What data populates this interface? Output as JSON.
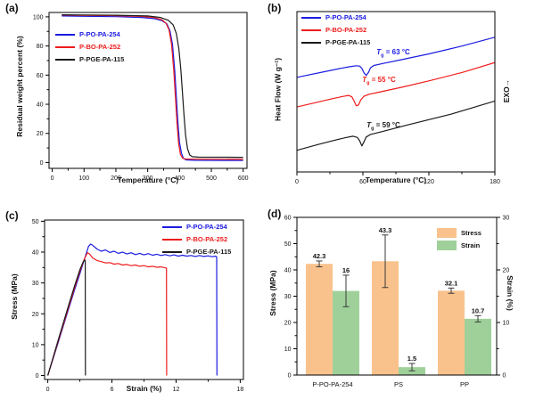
{
  "figure_bg": "#ffffff",
  "colors": {
    "blue": "#1b1be0",
    "red": "#ee1c1c",
    "black": "#1a1a1a",
    "orange_bar": "#f9c28d",
    "green_bar": "#9fd09a",
    "error_bar": "#3a3a3a"
  },
  "chart_data": [
    {
      "id": "a",
      "type": "line",
      "panel_label": "(a)",
      "xlabel": "Temperature (°C)",
      "ylabel": "Residual weight percent (%)",
      "xlim": [
        -10,
        612
      ],
      "ylim": [
        -4,
        103
      ],
      "xticks": {
        "major": [
          0,
          100,
          200,
          300,
          400,
          500,
          600
        ],
        "minor": [
          50,
          150,
          250,
          350,
          450,
          550
        ]
      },
      "yticks": {
        "major": [
          0,
          20,
          40,
          60,
          80,
          100
        ],
        "minor": [
          10,
          30,
          50,
          70,
          90
        ]
      },
      "legend_position": "top-left",
      "series": [
        {
          "name": "P-PO-PA-254",
          "color": "#1b1be0",
          "points": [
            [
              30,
              100.6
            ],
            [
              100,
              100.4
            ],
            [
              200,
              100.1
            ],
            [
              280,
              99.6
            ],
            [
              320,
              98.8
            ],
            [
              345,
              97.4
            ],
            [
              360,
              95.2
            ],
            [
              370,
              90.5
            ],
            [
              378,
              81
            ],
            [
              385,
              63
            ],
            [
              390,
              45
            ],
            [
              395,
              28
            ],
            [
              400,
              14
            ],
            [
              406,
              6.5
            ],
            [
              412,
              3
            ],
            [
              420,
              1.8
            ],
            [
              450,
              1.5
            ],
            [
              600,
              1.4
            ]
          ]
        },
        {
          "name": "P-BO-PA-252",
          "color": "#ee1c1c",
          "points": [
            [
              30,
              101.2
            ],
            [
              100,
              101.0
            ],
            [
              200,
              100.8
            ],
            [
              280,
              100.3
            ],
            [
              320,
              99.5
            ],
            [
              345,
              98.0
            ],
            [
              357,
              95.8
            ],
            [
              367,
              91
            ],
            [
              375,
              81
            ],
            [
              382,
              63
            ],
            [
              387,
              45
            ],
            [
              392,
              27
            ],
            [
              397,
              13
            ],
            [
              403,
              5.5
            ],
            [
              410,
              2.9
            ],
            [
              420,
              2.4
            ],
            [
              600,
              2.2
            ]
          ]
        },
        {
          "name": "P-PGE-PA-115",
          "color": "#1a1a1a",
          "points": [
            [
              30,
              101.4
            ],
            [
              100,
              101.3
            ],
            [
              200,
              101.1
            ],
            [
              300,
              100.6
            ],
            [
              340,
              99.6
            ],
            [
              365,
              97.6
            ],
            [
              380,
              94.5
            ],
            [
              390,
              88.5
            ],
            [
              398,
              78
            ],
            [
              404,
              64
            ],
            [
              409,
              49
            ],
            [
              414,
              33
            ],
            [
              419,
              19
            ],
            [
              425,
              9.5
            ],
            [
              432,
              5.2
            ],
            [
              440,
              4.0
            ],
            [
              460,
              3.7
            ],
            [
              600,
              3.6
            ]
          ]
        }
      ]
    },
    {
      "id": "b",
      "type": "line",
      "panel_label": "(b)",
      "xlabel": "Temperature (°C)",
      "ylabel": "Heat Flow (W g⁻¹)",
      "exo_label": "EXO→",
      "xlim": [
        0,
        180
      ],
      "ylim": [
        0,
        10
      ],
      "xticks": {
        "major": [
          0,
          60,
          120,
          180
        ],
        "minor": [
          30,
          90,
          150
        ]
      },
      "yticks": null,
      "legend_position": "top-left",
      "annotations": [
        {
          "prefix": "T",
          "sub": "g",
          "text": " = 63 °C",
          "color": "#1b1be0"
        },
        {
          "prefix": "T",
          "sub": "g",
          "text": " = 55 °C",
          "color": "#ee1c1c"
        },
        {
          "prefix": "T",
          "sub": "g",
          "text": " = 59 °C",
          "color": "#1a1a1a"
        }
      ],
      "series": [
        {
          "name": "P-PO-PA-254",
          "color": "#1b1be0",
          "points": [
            [
              0,
              5.9
            ],
            [
              25,
              6.25
            ],
            [
              40,
              6.46
            ],
            [
              48,
              6.56
            ],
            [
              54,
              6.62
            ],
            [
              57,
              6.6
            ],
            [
              59,
              6.46
            ],
            [
              61,
              6.18
            ],
            [
              63,
              6.02
            ],
            [
              65,
              6.2
            ],
            [
              67,
              6.5
            ],
            [
              70,
              6.64
            ],
            [
              78,
              6.76
            ],
            [
              95,
              7.0
            ],
            [
              120,
              7.36
            ],
            [
              150,
              7.85
            ],
            [
              180,
              8.4
            ]
          ]
        },
        {
          "name": "P-BO-PA-252",
          "color": "#ee1c1c",
          "points": [
            [
              0,
              4.05
            ],
            [
              20,
              4.37
            ],
            [
              33,
              4.58
            ],
            [
              42,
              4.71
            ],
            [
              47,
              4.77
            ],
            [
              50,
              4.68
            ],
            [
              52,
              4.42
            ],
            [
              54,
              4.12
            ],
            [
              56,
              4.18
            ],
            [
              58,
              4.48
            ],
            [
              61,
              4.72
            ],
            [
              66,
              4.85
            ],
            [
              75,
              4.98
            ],
            [
              95,
              5.28
            ],
            [
              120,
              5.68
            ],
            [
              150,
              6.2
            ],
            [
              180,
              6.82
            ]
          ]
        },
        {
          "name": "P-PGE-PA-115",
          "color": "#1a1a1a",
          "points": [
            [
              0,
              1.35
            ],
            [
              20,
              1.73
            ],
            [
              35,
              1.99
            ],
            [
              45,
              2.15
            ],
            [
              51,
              2.23
            ],
            [
              55,
              2.15
            ],
            [
              57,
              1.95
            ],
            [
              59,
              1.62
            ],
            [
              61,
              1.88
            ],
            [
              63,
              2.18
            ],
            [
              67,
              2.34
            ],
            [
              78,
              2.52
            ],
            [
              100,
              2.92
            ],
            [
              140,
              3.6
            ],
            [
              180,
              4.42
            ]
          ]
        }
      ]
    },
    {
      "id": "c",
      "type": "line",
      "panel_label": "(c)",
      "xlabel": "Strain (%)",
      "ylabel": "Stress (MPa)",
      "xlim": [
        -0.3,
        18.3
      ],
      "ylim": [
        -1.3,
        50.4
      ],
      "xticks": {
        "major": [
          0,
          6,
          12,
          18
        ],
        "minor": [
          3,
          9,
          15
        ]
      },
      "yticks": {
        "major": [
          0,
          10,
          20,
          30,
          40,
          50
        ],
        "minor": [
          5,
          15,
          25,
          35,
          45
        ]
      },
      "legend_position": "top-right",
      "series": [
        {
          "name": "P-PO-PA-254",
          "color": "#1b1be0",
          "points": [
            [
              0,
              0
            ],
            [
              0.5,
              5.5
            ],
            [
              1,
              11
            ],
            [
              1.5,
              16.6
            ],
            [
              2,
              22.2
            ],
            [
              2.5,
              27.7
            ],
            [
              3,
              33
            ],
            [
              3.5,
              38.5
            ],
            [
              3.8,
              41.8
            ],
            [
              4.0,
              42.6
            ],
            [
              4.2,
              42.2
            ],
            [
              4.6,
              41.0
            ],
            [
              5.0,
              40.3
            ],
            [
              5.4,
              40.7
            ],
            [
              5.8,
              39.9
            ],
            [
              6.2,
              40.3
            ],
            [
              6.6,
              39.6
            ],
            [
              7.0,
              40.0
            ],
            [
              7.4,
              39.4
            ],
            [
              7.8,
              39.8
            ],
            [
              8.2,
              39.2
            ],
            [
              8.6,
              39.6
            ],
            [
              9.0,
              39.1
            ],
            [
              9.4,
              39.5
            ],
            [
              9.8,
              39.0
            ],
            [
              10.2,
              39.3
            ],
            [
              10.6,
              38.9
            ],
            [
              11.0,
              39.2
            ],
            [
              11.4,
              38.8
            ],
            [
              11.8,
              39.1
            ],
            [
              12.2,
              38.7
            ],
            [
              12.6,
              39.0
            ],
            [
              13.0,
              38.7
            ],
            [
              13.4,
              38.9
            ],
            [
              13.8,
              38.6
            ],
            [
              14.2,
              38.9
            ],
            [
              14.6,
              38.6
            ],
            [
              15.0,
              38.8
            ],
            [
              15.4,
              38.5
            ],
            [
              15.7,
              38.7
            ],
            [
              15.8,
              38.4
            ],
            [
              15.82,
              0
            ]
          ]
        },
        {
          "name": "P-BO-PA-252",
          "color": "#ee1c1c",
          "points": [
            [
              0,
              0
            ],
            [
              0.5,
              5.7
            ],
            [
              1,
              11.4
            ],
            [
              1.5,
              17.1
            ],
            [
              2,
              22.8
            ],
            [
              2.5,
              28.4
            ],
            [
              3,
              33.8
            ],
            [
              3.4,
              37.6
            ],
            [
              3.7,
              39.8
            ],
            [
              3.9,
              39.4
            ],
            [
              4.2,
              38.1
            ],
            [
              4.6,
              37.3
            ],
            [
              5.0,
              36.9
            ],
            [
              5.4,
              36.5
            ],
            [
              5.8,
              36.6
            ],
            [
              6.2,
              36.1
            ],
            [
              6.6,
              36.3
            ],
            [
              7.0,
              35.8
            ],
            [
              7.4,
              36.0
            ],
            [
              7.8,
              35.6
            ],
            [
              8.2,
              35.8
            ],
            [
              8.6,
              35.4
            ],
            [
              9.0,
              35.6
            ],
            [
              9.4,
              35.2
            ],
            [
              9.8,
              35.4
            ],
            [
              10.2,
              35.1
            ],
            [
              10.6,
              35.2
            ],
            [
              11.0,
              34.9
            ],
            [
              11.1,
              34.8
            ],
            [
              11.12,
              0
            ]
          ]
        },
        {
          "name": "P-PGE-PA-115",
          "color": "#1a1a1a",
          "points": [
            [
              0,
              0
            ],
            [
              0.5,
              5.9
            ],
            [
              1,
              11.8
            ],
            [
              1.5,
              17.6
            ],
            [
              2,
              23.4
            ],
            [
              2.5,
              29.0
            ],
            [
              3,
              34.3
            ],
            [
              3.3,
              36.8
            ],
            [
              3.45,
              37.5
            ],
            [
              3.5,
              37.2
            ],
            [
              3.52,
              0
            ]
          ]
        }
      ]
    },
    {
      "id": "d",
      "type": "bar",
      "panel_label": "(d)",
      "categories": [
        "P-PO-PA-254",
        "PS",
        "PP"
      ],
      "left_axis": {
        "label": "Stress (MPa)",
        "lim": [
          0,
          60
        ],
        "major": [
          0,
          10,
          20,
          30,
          40,
          50,
          60
        ],
        "minor": [
          5,
          15,
          25,
          35,
          45,
          55
        ]
      },
      "right_axis": {
        "label": "Strain (%)",
        "lim": [
          0,
          30
        ],
        "major": [
          0,
          10,
          20,
          30
        ],
        "minor": [
          5,
          15,
          25
        ]
      },
      "legend_position": "top-right",
      "series": [
        {
          "name": "Stress",
          "color": "#f9c28d",
          "axis": "left",
          "values": [
            42.3,
            43.3,
            32.1
          ],
          "labels": [
            "42.3",
            "43.3",
            "32.1"
          ],
          "errors": [
            1.1,
            10,
            1.0
          ]
        },
        {
          "name": "Strain",
          "color": "#9fd09a",
          "axis": "right",
          "values": [
            16,
            1.5,
            10.7
          ],
          "labels": [
            "16",
            "1.5",
            "10.7"
          ],
          "errors": [
            3,
            0.7,
            0.6
          ]
        }
      ]
    }
  ]
}
